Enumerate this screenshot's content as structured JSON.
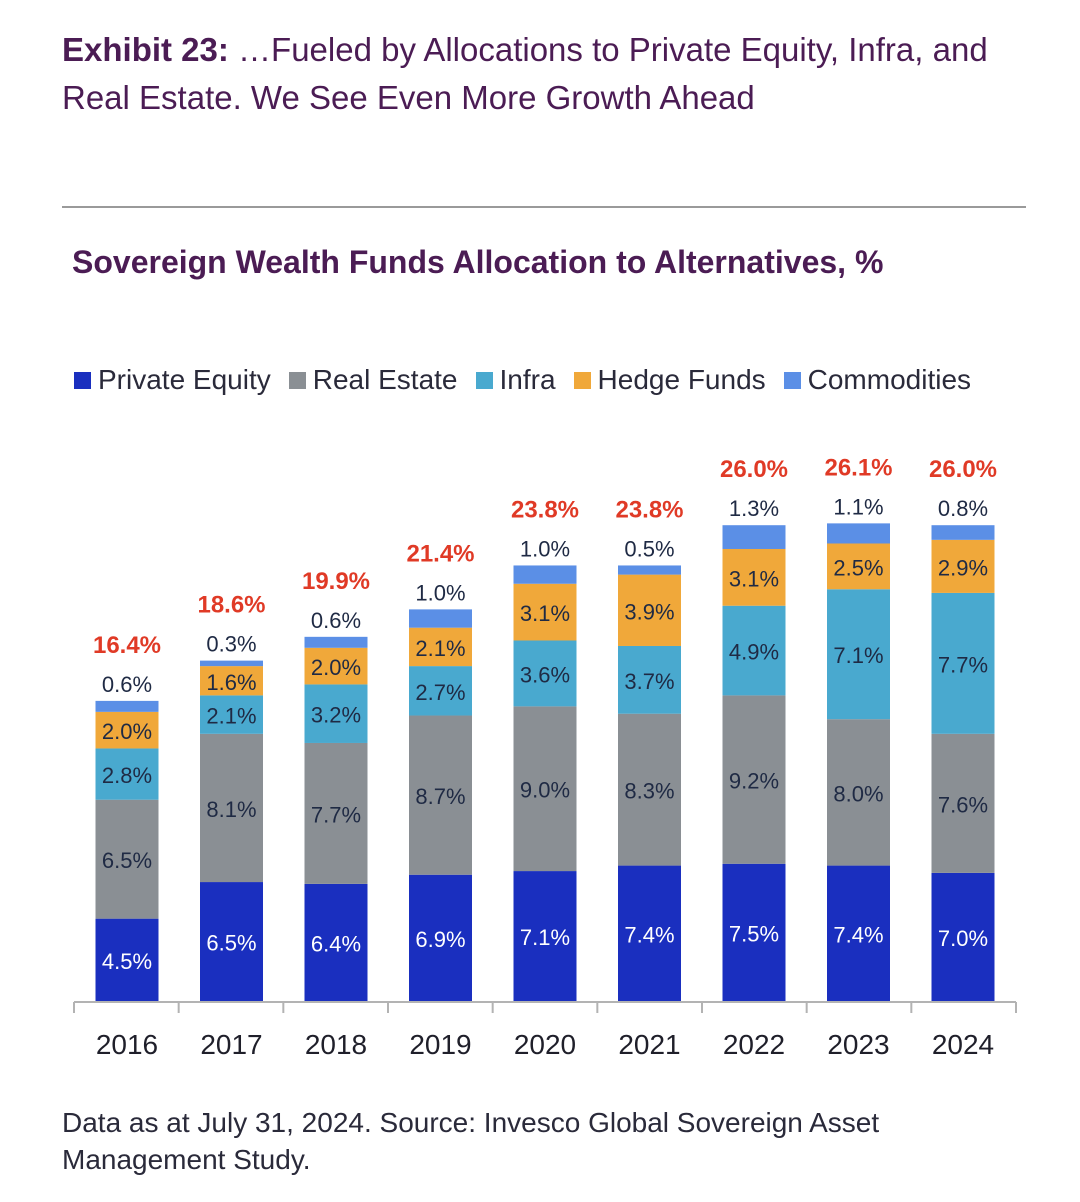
{
  "exhibit": {
    "lead": "Exhibit 23:",
    "text": " …Fueled by Allocations to Private Equity, Infra, and Real Estate. We See Even More Growth Ahead"
  },
  "footnote": "Data as at July 31, 2024. Source: Invesco Global Sovereign Asset Management Study.",
  "colors": {
    "private_equity": "#1a2fbf",
    "real_estate": "#8a8f94",
    "infra": "#49a9cf",
    "hedge_funds": "#f0a83a",
    "commodities": "#5b8fe6",
    "total_label": "#e03a26"
  },
  "chart_data": {
    "type": "bar",
    "stacked": true,
    "title": "Sovereign Wealth Funds Allocation to Alternatives, %",
    "categories": [
      "2016",
      "2017",
      "2018",
      "2019",
      "2020",
      "2021",
      "2022",
      "2023",
      "2024"
    ],
    "totals": [
      "16.4%",
      "18.6%",
      "19.9%",
      "21.4%",
      "23.8%",
      "23.8%",
      "26.0%",
      "26.1%",
      "26.0%"
    ],
    "legend_position": "top",
    "grid": false,
    "series": [
      {
        "name": "Private Equity",
        "values": [
          4.5,
          6.5,
          6.4,
          6.9,
          7.1,
          7.4,
          7.5,
          7.4,
          7.0
        ]
      },
      {
        "name": "Real Estate",
        "values": [
          6.5,
          8.1,
          7.7,
          8.7,
          9.0,
          8.3,
          9.2,
          8.0,
          7.6
        ]
      },
      {
        "name": "Infra",
        "values": [
          2.8,
          2.1,
          3.2,
          2.7,
          3.6,
          3.7,
          4.9,
          7.1,
          7.7
        ]
      },
      {
        "name": "Hedge Funds",
        "values": [
          2.0,
          1.6,
          2.0,
          2.1,
          3.1,
          3.9,
          3.1,
          2.5,
          2.9
        ]
      },
      {
        "name": "Commodities",
        "values": [
          0.6,
          0.3,
          0.6,
          1.0,
          1.0,
          0.5,
          1.3,
          1.1,
          0.8
        ]
      }
    ]
  }
}
